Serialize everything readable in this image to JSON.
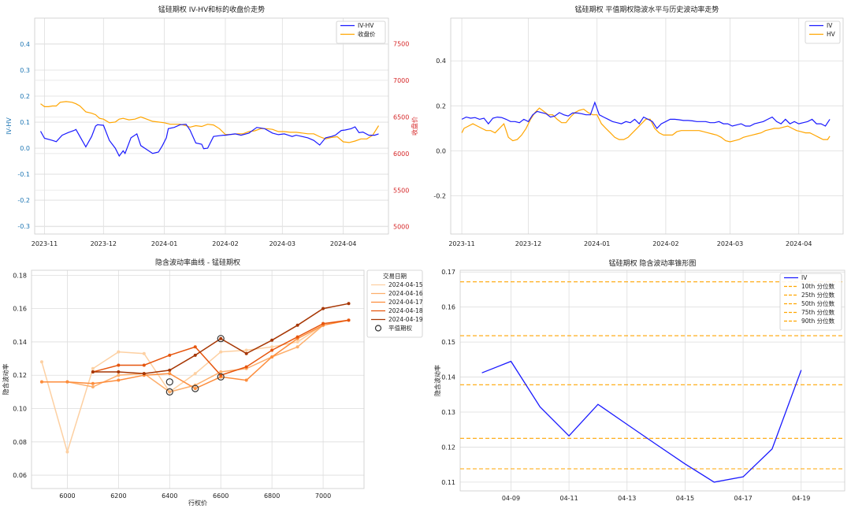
{
  "chart_data": [
    {
      "type": "line",
      "title": "锰硅期权 IV-HV和标的收盘价走势",
      "ylabel": "IV-HV",
      "y2label": "收盘价",
      "ylim": [
        -0.33,
        0.5
      ],
      "y2lim": [
        4900,
        7850
      ],
      "yticks": [
        -0.3,
        -0.2,
        -0.1,
        0.0,
        0.1,
        0.2,
        0.3,
        0.4
      ],
      "yticklabels": [
        "-0.3",
        "-0.2",
        "-0.1",
        "0.0",
        "0.1",
        "0.2",
        "0.3",
        "0.4"
      ],
      "y2ticks": [
        5000,
        5500,
        6000,
        6500,
        7000,
        7500
      ],
      "y2ticklabels": [
        "5000",
        "5500",
        "6000",
        "6500",
        "7000",
        "7500"
      ],
      "xlim": [
        -5,
        175
      ],
      "xticks": [
        0,
        30,
        61,
        92,
        121,
        152
      ],
      "xticklabels": [
        "2023-11",
        "2023-12",
        "2024-01",
        "2024-02",
        "2024-03",
        "2024-04"
      ],
      "legend": "top-right",
      "colors": {
        "ivhv": "#1a1aff",
        "close": "#ffa500"
      },
      "series": [
        {
          "name": "IV-HV",
          "axis": "left",
          "x": [
            -2,
            0,
            4,
            6,
            9,
            12,
            15,
            16,
            18,
            21,
            24,
            26,
            27,
            30,
            33,
            36,
            38,
            40,
            41,
            44,
            47,
            49,
            52,
            55,
            58,
            60,
            62,
            63,
            66,
            69,
            72,
            74,
            77,
            80,
            81,
            83,
            86,
            89,
            91,
            92,
            94,
            97,
            100,
            104,
            108,
            112,
            116,
            119,
            122,
            124,
            126,
            128,
            131,
            134,
            137,
            140,
            143,
            146,
            148,
            151,
            153,
            156,
            158,
            160,
            162,
            165,
            168,
            170
          ],
          "y": [
            0.065,
            0.038,
            0.03,
            0.025,
            0.05,
            0.06,
            0.068,
            0.072,
            0.045,
            0.005,
            0.045,
            0.085,
            0.09,
            0.088,
            0.03,
            0.0,
            -0.03,
            -0.01,
            -0.02,
            0.04,
            0.055,
            0.01,
            -0.005,
            -0.02,
            -0.015,
            0.01,
            0.04,
            0.075,
            0.08,
            0.09,
            0.092,
            0.07,
            0.02,
            0.015,
            -0.002,
            0.0,
            0.045,
            0.048,
            0.05,
            0.05,
            0.052,
            0.055,
            0.05,
            0.058,
            0.08,
            0.075,
            0.058,
            0.052,
            0.055,
            0.05,
            0.045,
            0.05,
            0.045,
            0.04,
            0.03,
            0.012,
            0.04,
            0.045,
            0.05,
            0.068,
            0.07,
            0.075,
            0.082,
            0.06,
            0.062,
            0.05,
            0.05,
            0.055
          ]
        },
        {
          "name": "收盘价",
          "axis": "right",
          "x": [
            -2,
            0,
            2,
            4,
            6,
            8,
            11,
            14,
            16,
            18,
            21,
            24,
            26,
            28,
            30,
            33,
            36,
            38,
            40,
            43,
            46,
            49,
            52,
            55,
            58,
            61,
            64,
            66,
            69,
            72,
            74,
            77,
            80,
            83,
            86,
            89,
            92,
            95,
            98,
            101,
            104,
            107,
            110,
            113,
            116,
            119,
            122,
            125,
            128,
            131,
            134,
            137,
            140,
            143,
            146,
            149,
            152,
            155,
            158,
            161,
            164,
            167,
            170
          ],
          "y": [
            6680,
            6640,
            6640,
            6650,
            6650,
            6700,
            6710,
            6700,
            6680,
            6650,
            6570,
            6550,
            6530,
            6480,
            6470,
            6420,
            6430,
            6470,
            6480,
            6460,
            6470,
            6500,
            6470,
            6440,
            6430,
            6420,
            6400,
            6400,
            6400,
            6380,
            6360,
            6380,
            6370,
            6400,
            6390,
            6340,
            6260,
            6260,
            6270,
            6270,
            6300,
            6310,
            6340,
            6340,
            6330,
            6300,
            6300,
            6290,
            6290,
            6280,
            6270,
            6270,
            6230,
            6200,
            6220,
            6230,
            6160,
            6150,
            6170,
            6200,
            6200,
            6250,
            6380
          ]
        }
      ]
    },
    {
      "type": "line",
      "title": "锰硅期权 平值期权隐波水平与历史波动率走势",
      "ylim": [
        -0.37,
        0.59
      ],
      "yticks": [
        -0.2,
        0.0,
        0.2,
        0.4
      ],
      "yticklabels": [
        "-0.2",
        "0.0",
        "0.2",
        "0.4"
      ],
      "xlim": [
        -5,
        172
      ],
      "xticks": [
        0,
        30,
        61,
        92,
        121,
        152
      ],
      "xticklabels": [
        "2023-11",
        "2023-12",
        "2024-01",
        "2024-02",
        "2024-03",
        "2024-04"
      ],
      "legend": "top-right",
      "colors": {
        "iv": "#1a1aff",
        "hv": "#ffa500"
      },
      "series": [
        {
          "name": "IV",
          "x": [
            0,
            2,
            4,
            6,
            8,
            10,
            12,
            14,
            16,
            18,
            20,
            22,
            24,
            26,
            28,
            30,
            32,
            34,
            36,
            38,
            40,
            42,
            44,
            46,
            48,
            50,
            52,
            54,
            56,
            58,
            60,
            62,
            64,
            66,
            68,
            70,
            72,
            74,
            76,
            78,
            80,
            82,
            84,
            86,
            88,
            90,
            92,
            94,
            96,
            98,
            100,
            102,
            104,
            106,
            108,
            110,
            112,
            114,
            116,
            118,
            120,
            122,
            124,
            126,
            128,
            130,
            132,
            134,
            136,
            138,
            140,
            142,
            144,
            146,
            148,
            150,
            152,
            154,
            156,
            158,
            160,
            162,
            164,
            166
          ],
          "y": [
            0.14,
            0.15,
            0.145,
            0.148,
            0.14,
            0.145,
            0.12,
            0.145,
            0.15,
            0.148,
            0.14,
            0.13,
            0.13,
            0.125,
            0.14,
            0.13,
            0.16,
            0.175,
            0.17,
            0.165,
            0.15,
            0.155,
            0.17,
            0.16,
            0.155,
            0.168,
            0.168,
            0.165,
            0.16,
            0.16,
            0.215,
            0.16,
            0.15,
            0.14,
            0.13,
            0.125,
            0.12,
            0.13,
            0.125,
            0.14,
            0.12,
            0.15,
            0.14,
            0.13,
            0.1,
            0.12,
            0.13,
            0.14,
            0.14,
            0.138,
            0.135,
            0.135,
            0.133,
            0.13,
            0.13,
            0.13,
            0.125,
            0.125,
            0.13,
            0.12,
            0.12,
            0.11,
            0.115,
            0.12,
            0.11,
            0.11,
            0.12,
            0.125,
            0.13,
            0.14,
            0.15,
            0.13,
            0.12,
            0.14,
            0.12,
            0.13,
            0.12,
            0.125,
            0.13,
            0.14,
            0.12,
            0.12,
            0.11,
            0.14
          ]
        },
        {
          "name": "HV",
          "x": [
            0,
            1,
            3,
            5,
            7,
            9,
            11,
            13,
            15,
            17,
            19,
            21,
            23,
            25,
            27,
            29,
            31,
            33,
            35,
            37,
            39,
            41,
            43,
            45,
            47,
            49,
            51,
            53,
            55,
            57,
            59,
            61,
            63,
            65,
            67,
            69,
            71,
            73,
            75,
            77,
            79,
            81,
            83,
            85,
            87,
            89,
            91,
            93,
            95,
            97,
            99,
            101,
            103,
            105,
            107,
            109,
            111,
            113,
            115,
            117,
            119,
            121,
            123,
            125,
            127,
            129,
            131,
            133,
            135,
            137,
            139,
            141,
            143,
            145,
            147,
            149,
            151,
            153,
            155,
            157,
            159,
            161,
            163,
            165,
            166
          ],
          "y": [
            0.08,
            0.1,
            0.11,
            0.12,
            0.11,
            0.1,
            0.09,
            0.09,
            0.08,
            0.1,
            0.12,
            0.06,
            0.045,
            0.05,
            0.07,
            0.1,
            0.14,
            0.17,
            0.19,
            0.175,
            0.16,
            0.16,
            0.14,
            0.125,
            0.125,
            0.15,
            0.17,
            0.18,
            0.185,
            0.17,
            0.16,
            0.16,
            0.12,
            0.1,
            0.08,
            0.06,
            0.05,
            0.05,
            0.06,
            0.08,
            0.1,
            0.12,
            0.14,
            0.14,
            0.1,
            0.08,
            0.07,
            0.07,
            0.07,
            0.085,
            0.09,
            0.09,
            0.09,
            0.09,
            0.09,
            0.085,
            0.08,
            0.075,
            0.07,
            0.06,
            0.045,
            0.04,
            0.045,
            0.05,
            0.06,
            0.065,
            0.07,
            0.075,
            0.08,
            0.09,
            0.095,
            0.1,
            0.1,
            0.105,
            0.11,
            0.1,
            0.09,
            0.085,
            0.08,
            0.08,
            0.07,
            0.06,
            0.05,
            0.05,
            0.065
          ]
        }
      ]
    },
    {
      "type": "line",
      "title": "隐含波动率曲线 - 锰硅期权",
      "xlabel": "行权价",
      "ylabel": "隐含波动率",
      "xlim": [
        5860,
        7160
      ],
      "ylim": [
        0.052,
        0.183
      ],
      "xticks": [
        6000,
        6200,
        6400,
        6600,
        6800,
        7000
      ],
      "xticklabels": [
        "6000",
        "6200",
        "6400",
        "6600",
        "6800",
        "7000"
      ],
      "yticks": [
        0.06,
        0.08,
        0.1,
        0.12,
        0.14,
        0.16,
        0.18
      ],
      "yticklabels": [
        "0.06",
        "0.08",
        "0.10",
        "0.12",
        "0.14",
        "0.16",
        "0.18"
      ],
      "legend_title": "交易日期",
      "legend": "top-right",
      "colors": [
        "#fdd0a2",
        "#fdae6b",
        "#fd8d3c",
        "#e6550d",
        "#a63603"
      ],
      "series": [
        {
          "name": "2024-04-15",
          "x": [
            5900,
            6000,
            6100,
            6200,
            6300,
            6400,
            6500,
            6600,
            6700,
            6800,
            6900,
            7000
          ],
          "y": [
            0.128,
            0.074,
            0.124,
            0.134,
            0.133,
            0.11,
            0.121,
            0.134,
            0.135,
            0.137,
            0.14,
            0.15
          ]
        },
        {
          "name": "2024-04-16",
          "x": [
            5900,
            6000,
            6100,
            6200,
            6300,
            6400,
            6500,
            6600,
            6700,
            6800,
            6900,
            7000
          ],
          "y": [
            0.116,
            0.116,
            0.113,
            0.12,
            0.121,
            0.11,
            0.114,
            0.122,
            0.124,
            0.131,
            0.137,
            0.15
          ]
        },
        {
          "name": "2024-04-17",
          "x": [
            5900,
            6000,
            6100,
            6200,
            6300,
            6400,
            6500,
            6600,
            6700,
            6800,
            6900,
            7000,
            7100
          ],
          "y": [
            0.116,
            0.116,
            0.115,
            0.117,
            0.12,
            0.121,
            0.112,
            0.119,
            0.117,
            0.131,
            0.142,
            0.15,
            0.153
          ]
        },
        {
          "name": "2024-04-18",
          "x": [
            6100,
            6200,
            6300,
            6400,
            6500,
            6600,
            6700,
            6800,
            6900,
            7000,
            7100
          ],
          "y": [
            0.122,
            0.126,
            0.126,
            0.132,
            0.137,
            0.12,
            0.125,
            0.135,
            0.143,
            0.151,
            0.153
          ]
        },
        {
          "name": "2024-04-19",
          "x": [
            6100,
            6200,
            6300,
            6400,
            6500,
            6600,
            6700,
            6800,
            6900,
            7000,
            7100
          ],
          "y": [
            0.122,
            0.122,
            0.121,
            0.123,
            0.132,
            0.142,
            0.133,
            0.141,
            0.15,
            0.16,
            0.163
          ]
        }
      ],
      "atm_label": "平值期权",
      "atm_points": [
        {
          "x": 6400,
          "y": 0.11
        },
        {
          "x": 6400,
          "y": 0.116
        },
        {
          "x": 6500,
          "y": 0.112
        },
        {
          "x": 6600,
          "y": 0.119
        },
        {
          "x": 6600,
          "y": 0.142
        }
      ]
    },
    {
      "type": "line",
      "title": "锰硅期权 隐含波动率锥形图",
      "ylabel": "隐含波动率",
      "xlim": [
        -0.75,
        12.5
      ],
      "ylim": [
        0.1075,
        0.1705
      ],
      "xticks": [
        1,
        3,
        5,
        7,
        9,
        11
      ],
      "xticklabels": [
        "04-09",
        "04-11",
        "04-13",
        "04-15",
        "04-17",
        "04-19"
      ],
      "yticks": [
        0.11,
        0.12,
        0.13,
        0.14,
        0.15,
        0.16,
        0.17
      ],
      "yticklabels": [
        "0.11",
        "0.12",
        "0.13",
        "0.14",
        "0.15",
        "0.16",
        "0.17"
      ],
      "legend": "top-right",
      "colors": {
        "iv": "#1a1aff",
        "pct": "#ffa500"
      },
      "series": [
        {
          "name": "IV",
          "x": [
            0,
            1,
            2,
            3,
            4,
            5,
            6,
            7,
            8,
            9,
            10,
            11
          ],
          "y": [
            0.1412,
            0.1445,
            0.1315,
            0.1232,
            0.1322,
            0.1265,
            0.1208,
            0.1152,
            0.11,
            0.1115,
            0.1195,
            0.142
          ]
        }
      ],
      "percentiles": [
        {
          "name": "10th 分位数",
          "value": 0.1138
        },
        {
          "name": "25th 分位数",
          "value": 0.1225
        },
        {
          "name": "50th 分位数",
          "value": 0.1378
        },
        {
          "name": "75th 分位数",
          "value": 0.1518
        },
        {
          "name": "90th 分位数",
          "value": 0.1672
        }
      ]
    }
  ]
}
